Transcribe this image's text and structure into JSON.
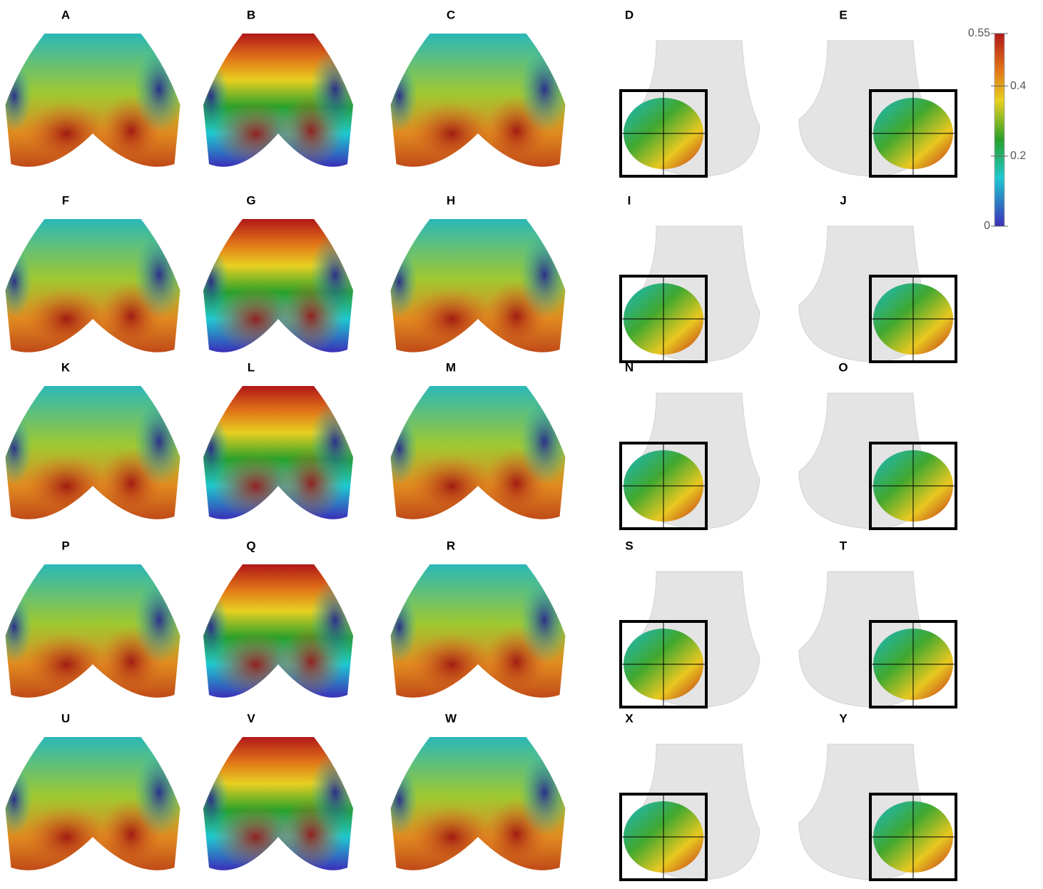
{
  "panels": [
    "A",
    "B",
    "C",
    "D",
    "E",
    "F",
    "G",
    "H",
    "I",
    "J",
    "K",
    "L",
    "M",
    "N",
    "O",
    "P",
    "Q",
    "R",
    "S",
    "T",
    "U",
    "V",
    "W",
    "X",
    "Y"
  ],
  "colorbar": {
    "range": [
      0,
      0.55
    ],
    "ticks": [
      0.55,
      0.4,
      0.2,
      0
    ]
  }
}
